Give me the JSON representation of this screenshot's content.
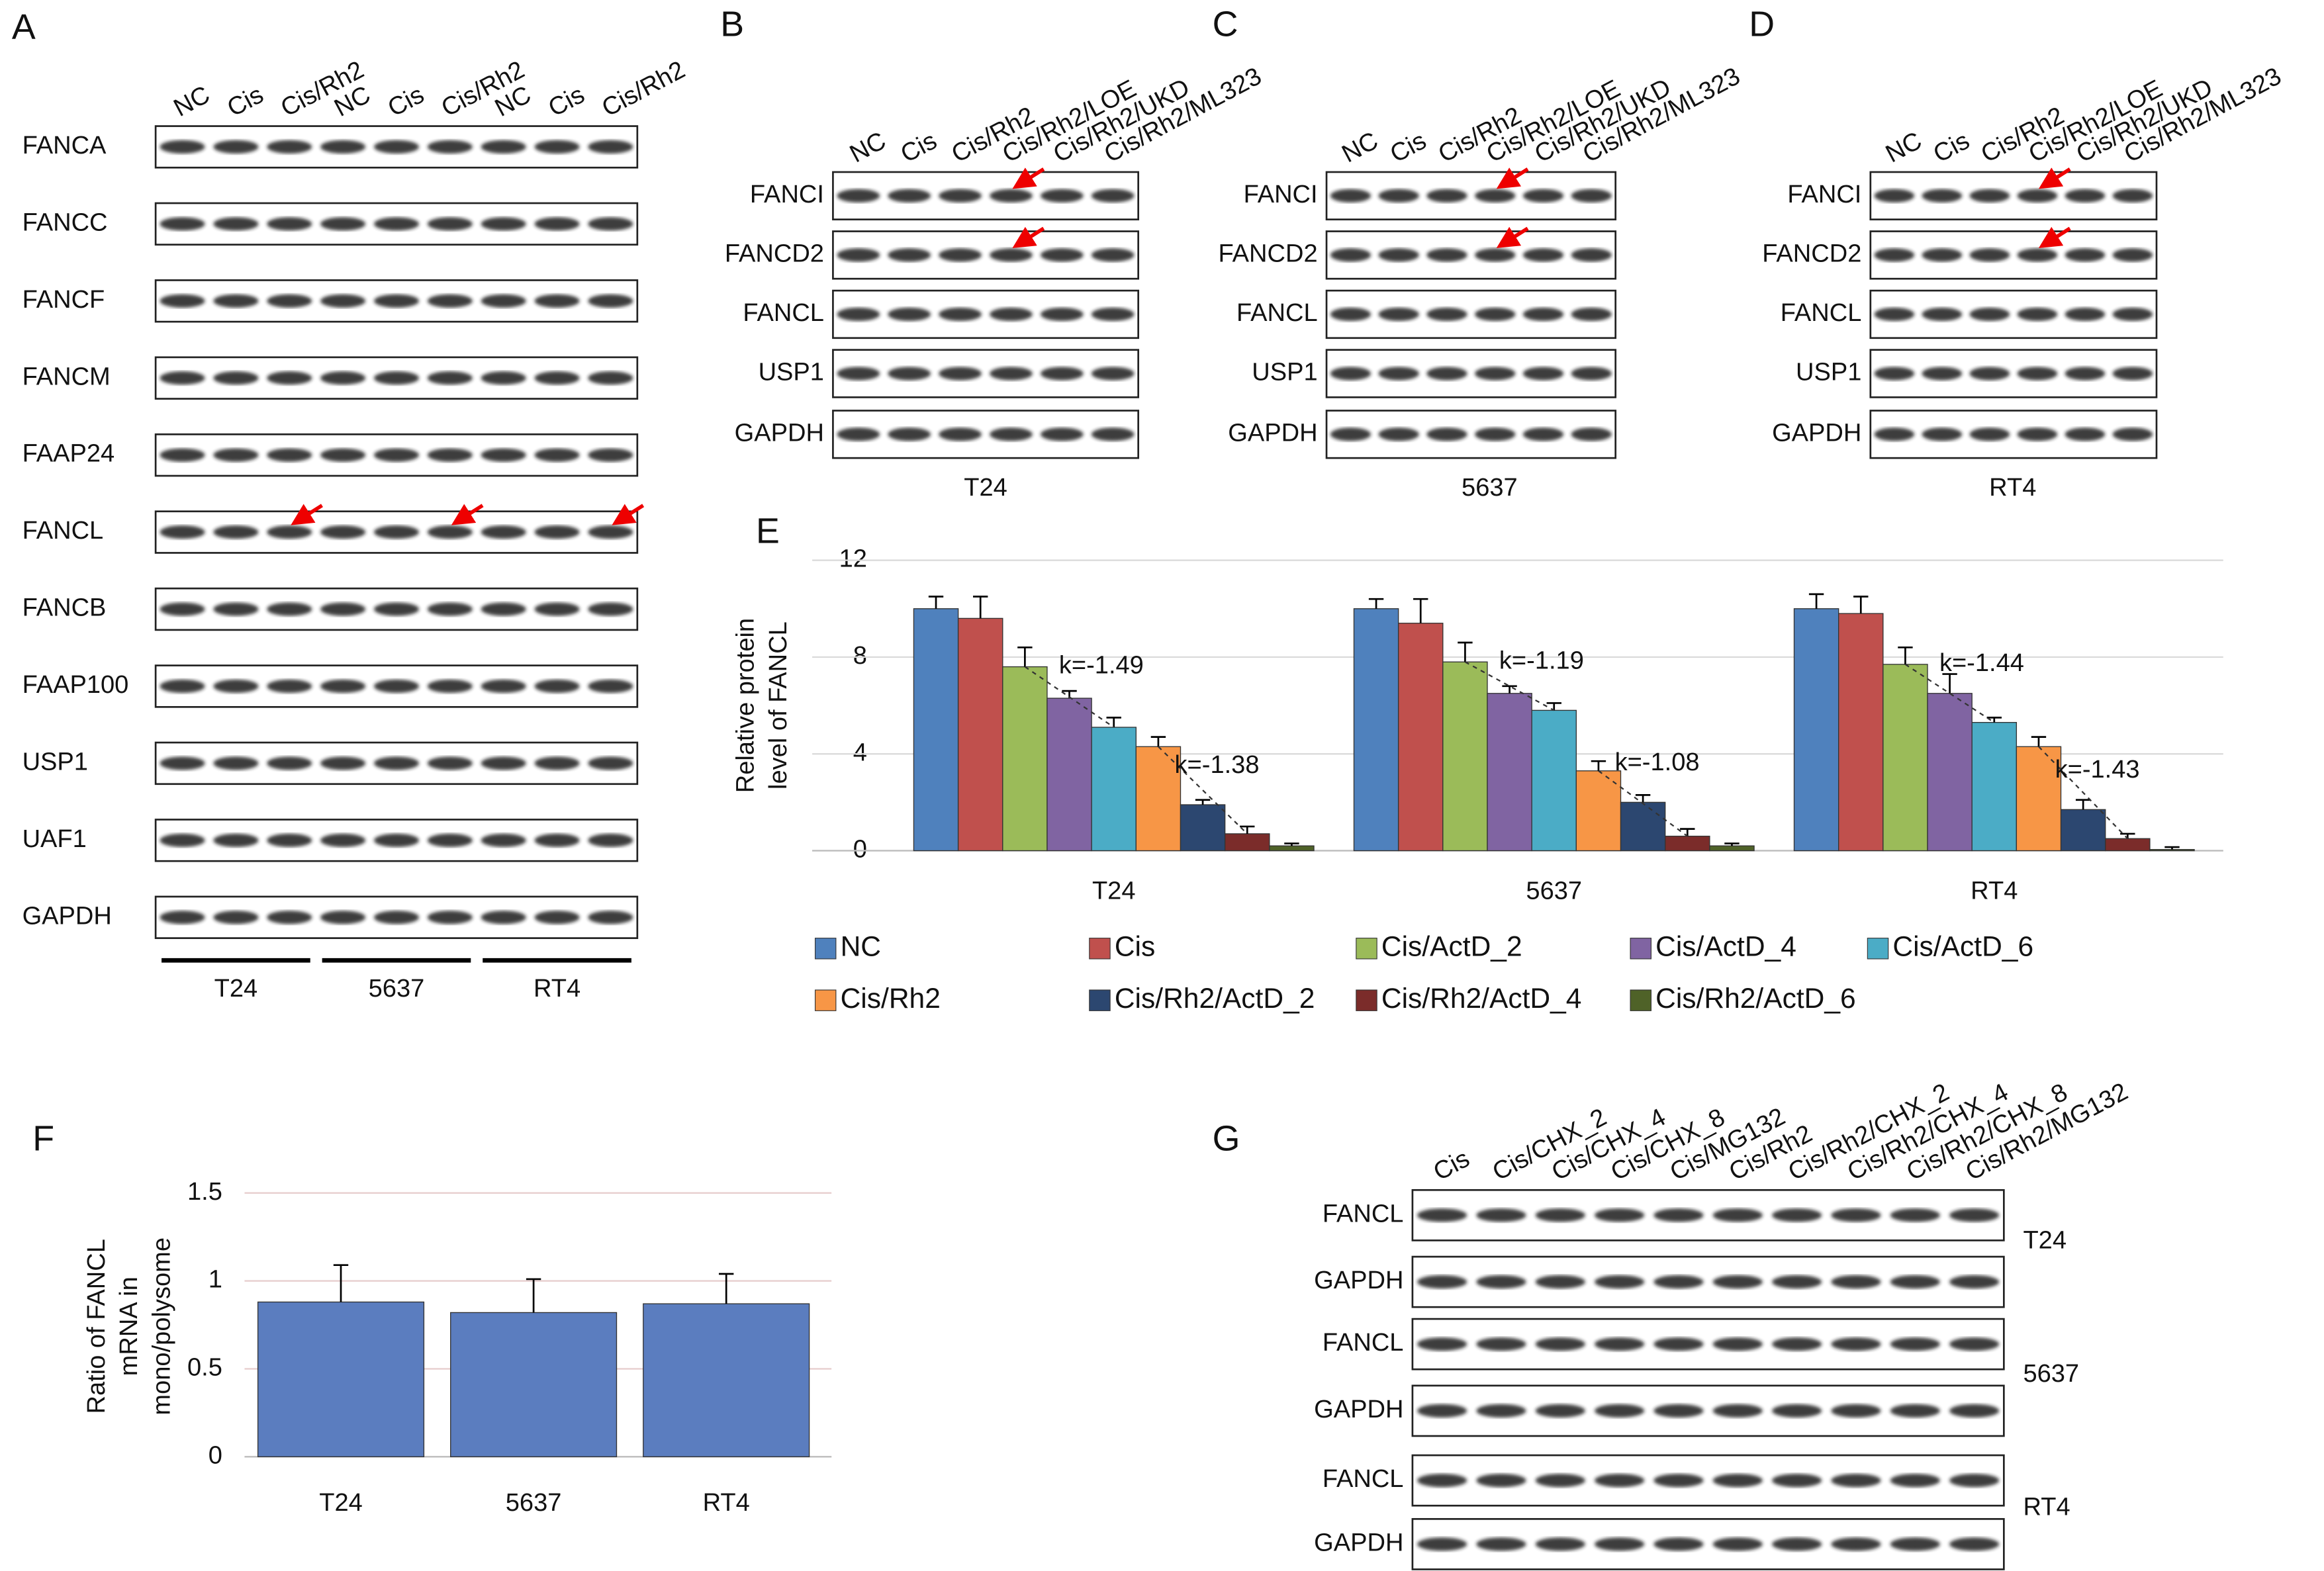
{
  "blots": [
    {
      "letter": "A",
      "lanes": [
        "NC",
        "Cis",
        "Cis/Rh2",
        "NC",
        "Cis",
        "Cis/Rh2",
        "NC",
        "Cis",
        "Cis/Rh2"
      ],
      "rows": [
        "FANCA",
        "FANCC",
        "FANCF",
        "FANCM",
        "FAAP24",
        "FANCL",
        "FANCB",
        "FAAP100",
        "USP1",
        "UAF1",
        "GAPDH"
      ],
      "groups": [
        "T24",
        "5637",
        "RT4"
      ]
    },
    {
      "letter": "B",
      "lanes": [
        "NC",
        "Cis",
        "Cis/Rh2",
        "Cis/Rh2/LOE",
        "Cis/Rh2/UKD",
        "Cis/Rh2/ML323"
      ],
      "rows": [
        "FANCI",
        "FANCD2",
        "FANCL",
        "USP1",
        "GAPDH"
      ],
      "cell_line": "T24"
    },
    {
      "letter": "C",
      "lanes": [
        "NC",
        "Cis",
        "Cis/Rh2",
        "Cis/Rh2/LOE",
        "Cis/Rh2/UKD",
        "Cis/Rh2/ML323"
      ],
      "rows": [
        "FANCI",
        "FANCD2",
        "FANCL",
        "USP1",
        "GAPDH"
      ],
      "cell_line": "5637"
    },
    {
      "letter": "D",
      "lanes": [
        "NC",
        "Cis",
        "Cis/Rh2",
        "Cis/Rh2/LOE",
        "Cis/Rh2/UKD",
        "Cis/Rh2/ML323"
      ],
      "rows": [
        "FANCI",
        "FANCD2",
        "FANCL",
        "USP1",
        "GAPDH"
      ],
      "cell_line": "RT4"
    },
    {
      "letter": "G",
      "lanes": [
        "Cis",
        "Cis/CHX_2",
        "Cis/CHX_4",
        "Cis/CHX_8",
        "Cis/MG132",
        "Cis/Rh2",
        "Cis/Rh2/CHX_2",
        "Cis/Rh2/CHX_4",
        "Cis/Rh2/CHX_8",
        "Cis/Rh2/MG132"
      ],
      "rows": [
        "FANCL",
        "GAPDH",
        "FANCL",
        "GAPDH",
        "FANCL",
        "GAPDH"
      ],
      "cell_lines": [
        "T24",
        "5637",
        "RT4"
      ]
    }
  ],
  "chart_data": [
    {
      "type": "bar",
      "panel": "E",
      "ylabel": [
        "Relative protein",
        "level of FANCL"
      ],
      "categories": [
        "T24",
        "5637",
        "RT4"
      ],
      "ylim": [
        0,
        12
      ],
      "yticks": [
        0,
        4,
        8,
        12
      ],
      "grid": true,
      "series": [
        {
          "name": "NC",
          "color": "#4f81bd",
          "values": [
            10,
            10,
            10
          ],
          "errors": [
            0.5,
            0.4,
            0.6
          ]
        },
        {
          "name": "Cis",
          "color": "#c0504d",
          "values": [
            9.6,
            9.4,
            9.8
          ],
          "errors": [
            0.9,
            1.0,
            0.7
          ]
        },
        {
          "name": "Cis/ActD_2",
          "color": "#9bbb59",
          "values": [
            7.6,
            7.8,
            7.7
          ],
          "errors": [
            0.8,
            0.8,
            0.7
          ]
        },
        {
          "name": "Cis/ActD_4",
          "color": "#8064a2",
          "values": [
            6.3,
            6.5,
            6.5
          ],
          "errors": [
            0.3,
            0.3,
            0.8
          ]
        },
        {
          "name": "Cis/ActD_6",
          "color": "#4bacc6",
          "values": [
            5.1,
            5.8,
            5.3
          ],
          "errors": [
            0.4,
            0.3,
            0.2
          ]
        },
        {
          "name": "Cis/Rh2",
          "color": "#f79646",
          "values": [
            4.3,
            3.3,
            4.3
          ],
          "errors": [
            0.4,
            0.4,
            0.4
          ]
        },
        {
          "name": "Cis/Rh2/ActD_2",
          "color": "#2c4770",
          "values": [
            1.9,
            2.0,
            1.7
          ],
          "errors": [
            0.2,
            0.3,
            0.4
          ]
        },
        {
          "name": "Cis/Rh2/ActD_4",
          "color": "#7b2c2a",
          "values": [
            0.7,
            0.6,
            0.5
          ],
          "errors": [
            0.3,
            0.3,
            0.2
          ]
        },
        {
          "name": "Cis/Rh2/ActD_6",
          "color": "#4f6228",
          "values": [
            0.2,
            0.2,
            0.05
          ],
          "errors": [
            0.1,
            0.1,
            0.1
          ]
        }
      ],
      "annotations": [
        "k=-1.49",
        "k=-1.38",
        "k=-1.19",
        "k=-1.08",
        "k=-1.44",
        "k=-1.43"
      ]
    },
    {
      "type": "bar",
      "panel": "F",
      "ylabel": [
        "Ratio of FANCL",
        "mRNA in",
        "mono/polysome"
      ],
      "categories": [
        "T24",
        "5637",
        "RT4"
      ],
      "values": [
        0.88,
        0.82,
        0.87
      ],
      "errors": [
        0.21,
        0.19,
        0.17
      ],
      "color": "#5b7dbf",
      "ylim": [
        0,
        1.5
      ],
      "yticks": [
        0,
        0.5,
        1,
        1.5
      ],
      "grid": true
    }
  ]
}
